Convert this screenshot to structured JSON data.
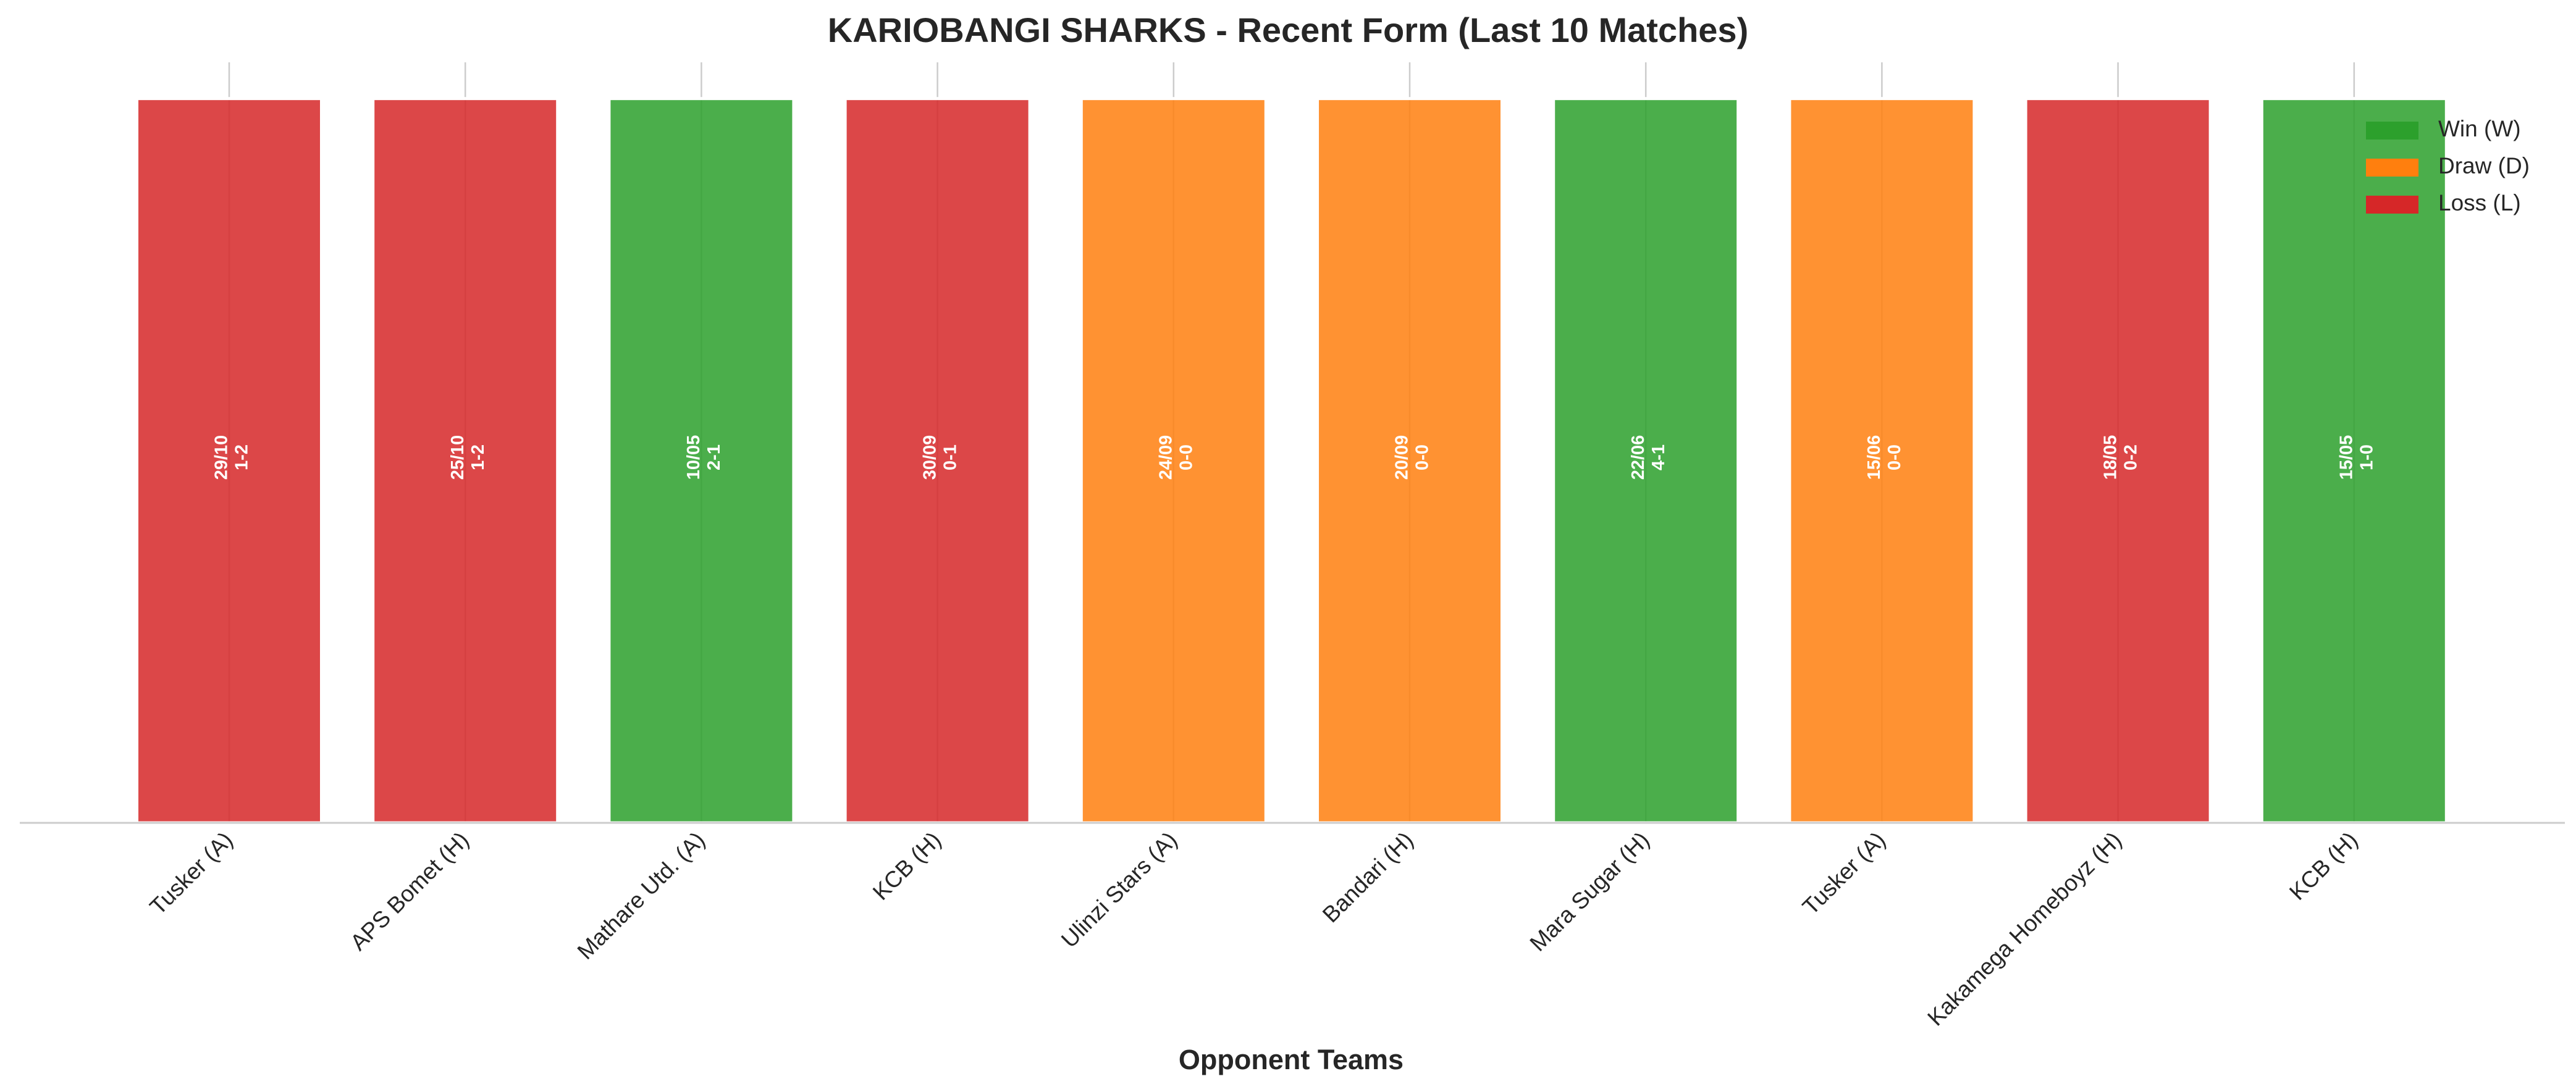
{
  "chart_data": {
    "type": "bar",
    "title": "KARIOBANGI SHARKS - Recent Form (Last 10 Matches)",
    "x_label": "Opponent Teams",
    "categories": [
      "Tusker (A)",
      "APS Bomet (H)",
      "Mathare Utd. (A)",
      "KCB (H)",
      "Ulinzi Stars (A)",
      "Bandari (H)",
      "Mara Sugar (H)",
      "Tusker (A)",
      "Kakamega Homeboyz (H)",
      "KCB (H)"
    ],
    "dates": [
      "29/10",
      "25/10",
      "10/05",
      "30/09",
      "24/09",
      "20/09",
      "22/06",
      "15/06",
      "18/05",
      "15/05"
    ],
    "scores": [
      "1-2",
      "1-2",
      "2-1",
      "0-1",
      "0-0",
      "0-0",
      "4-1",
      "0-0",
      "0-2",
      "1-0"
    ],
    "series": [
      {
        "name": "Win (W)",
        "color": "#2ca02c",
        "values": [
          null,
          null,
          1,
          null,
          null,
          null,
          1,
          null,
          null,
          1
        ]
      },
      {
        "name": "Draw (D)",
        "color": "#ff7f0e",
        "values": [
          null,
          null,
          null,
          null,
          1,
          1,
          null,
          1,
          null,
          null
        ]
      },
      {
        "name": "Loss (L)",
        "color": "#d62728",
        "values": [
          1,
          1,
          null,
          1,
          null,
          null,
          null,
          null,
          1,
          null
        ]
      }
    ],
    "ylim": [
      0,
      1.05
    ],
    "grid": true,
    "legend": "upper right"
  }
}
